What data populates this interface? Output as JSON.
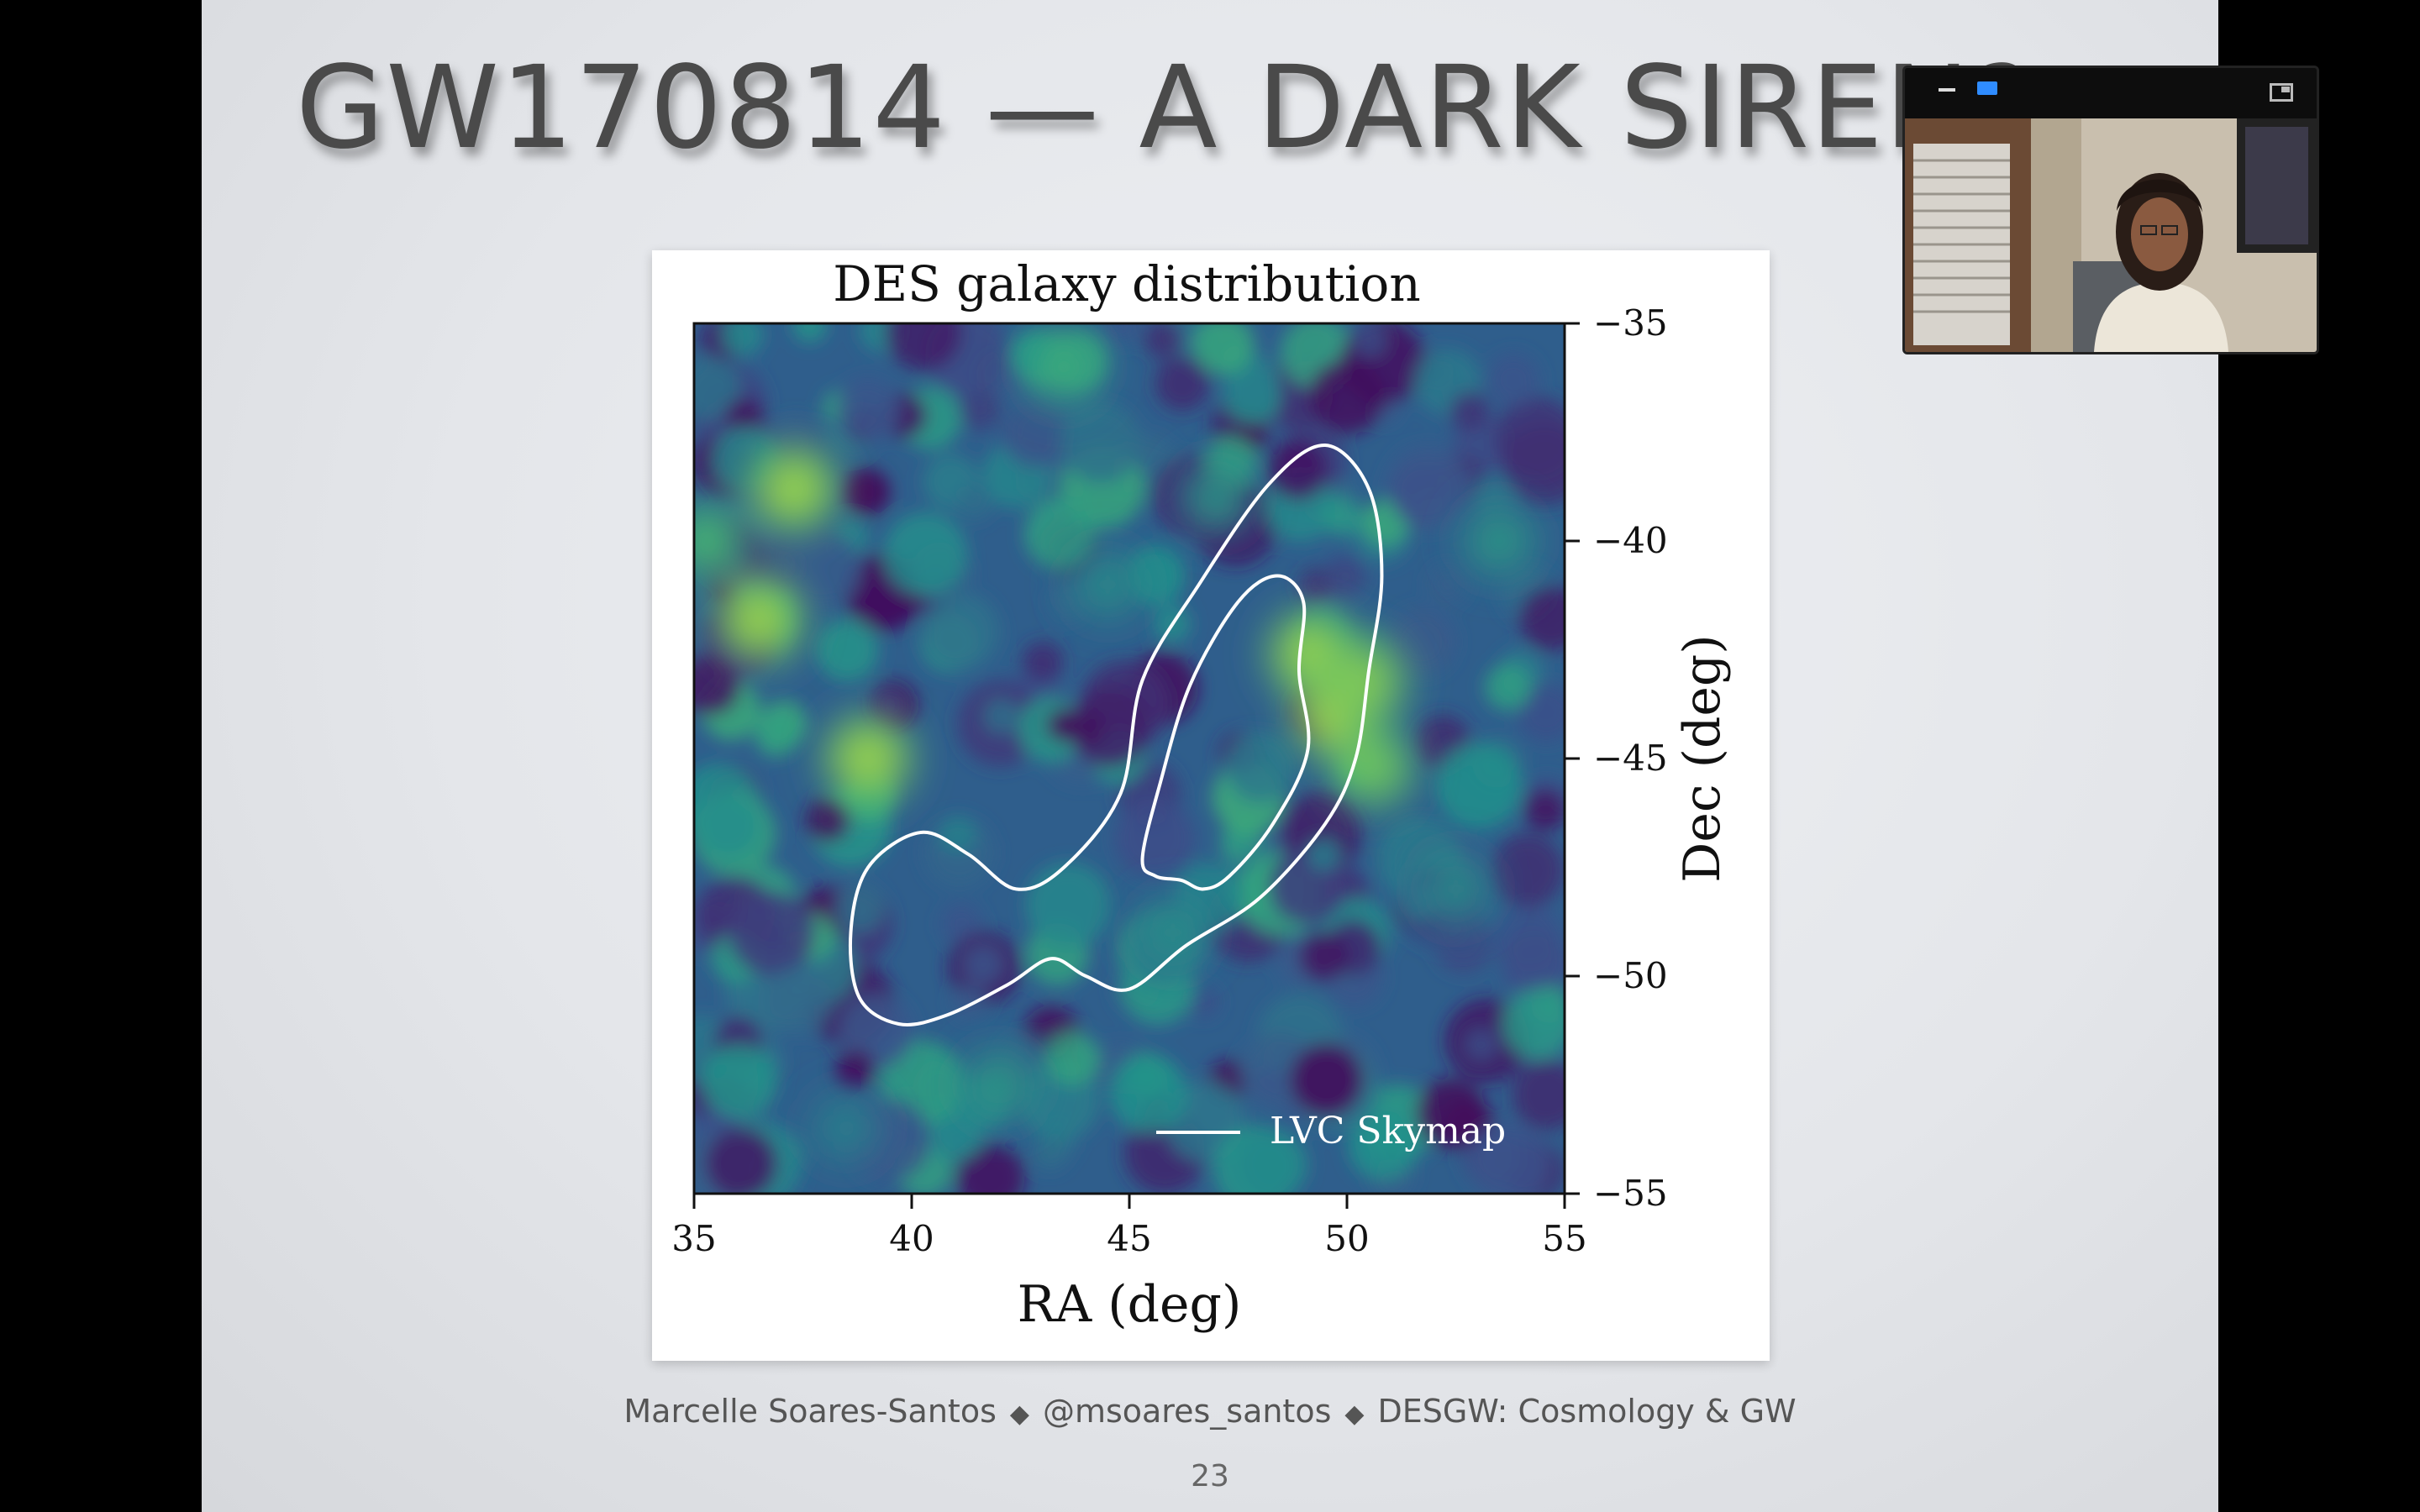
{
  "slide": {
    "title": "GW170814 — A DARK SIREN?",
    "footer": {
      "author": "Marcelle Soares-Santos",
      "separator": "◆",
      "handle": "@msoares_santos",
      "talk": "DESGW: Cosmology & GW"
    },
    "page_number": "23"
  },
  "chart_data": {
    "type": "heatmap",
    "title": "DES galaxy distribution",
    "xlabel": "RA (deg)",
    "ylabel": "Dec (deg)",
    "xlim": [
      35,
      55
    ],
    "ylim": [
      -55,
      -35
    ],
    "x_ticks": [
      "35",
      "40",
      "45",
      "50",
      "55"
    ],
    "y_ticks": [
      "−35",
      "−40",
      "−45",
      "−50",
      "−55"
    ],
    "colormap": "viridis",
    "legend": {
      "label": "LVC Skymap",
      "placement": "bottom-right",
      "color": "#ffffff"
    },
    "hotspots": [
      {
        "ra": 37.3,
        "dec": -38.8,
        "value": 0.95
      },
      {
        "ra": 36.5,
        "dec": -41.8,
        "value": 0.95
      },
      {
        "ra": 39.0,
        "dec": -45.0,
        "value": 0.95
      },
      {
        "ra": 35.3,
        "dec": -40.0,
        "value": 0.75
      },
      {
        "ra": 49.2,
        "dec": -42.6,
        "value": 0.95
      },
      {
        "ra": 49.8,
        "dec": -44.0,
        "value": 1.0
      },
      {
        "ra": 50.4,
        "dec": -43.2,
        "value": 0.9
      },
      {
        "ra": 50.6,
        "dec": -45.2,
        "value": 0.85
      },
      {
        "ra": 47.0,
        "dec": -39.0,
        "value": 0.6
      },
      {
        "ra": 43.5,
        "dec": -36.0,
        "value": 0.7
      },
      {
        "ra": 46.0,
        "dec": -49.0,
        "value": 0.55
      },
      {
        "ra": 52.5,
        "dec": -48.0,
        "value": 0.55
      },
      {
        "ra": 42.0,
        "dec": -52.5,
        "value": 0.6
      },
      {
        "ra": 53.5,
        "dec": -40.0,
        "value": 0.6
      },
      {
        "ra": 44.5,
        "dec": -41.0,
        "value": 0.55
      },
      {
        "ra": 38.5,
        "dec": -53.5,
        "value": 0.5
      }
    ],
    "contours": [
      {
        "name": "outer",
        "points": [
          [
            49.5,
            -37.8
          ],
          [
            50.5,
            -38.8
          ],
          [
            50.8,
            -40.8
          ],
          [
            50.5,
            -43.0
          ],
          [
            50.2,
            -45.0
          ],
          [
            49.5,
            -46.5
          ],
          [
            48.0,
            -48.2
          ],
          [
            46.3,
            -49.3
          ],
          [
            45.0,
            -50.3
          ],
          [
            44.0,
            -50.0
          ],
          [
            43.2,
            -49.6
          ],
          [
            42.2,
            -50.2
          ],
          [
            40.8,
            -50.9
          ],
          [
            39.7,
            -51.1
          ],
          [
            38.8,
            -50.5
          ],
          [
            38.6,
            -49.0
          ],
          [
            39.0,
            -47.5
          ],
          [
            40.2,
            -46.7
          ],
          [
            41.3,
            -47.2
          ],
          [
            42.4,
            -48.0
          ],
          [
            43.5,
            -47.5
          ],
          [
            44.8,
            -45.8
          ],
          [
            45.3,
            -43.2
          ],
          [
            46.6,
            -41.0
          ],
          [
            48.2,
            -38.7
          ]
        ]
      },
      {
        "name": "inner",
        "points": [
          [
            48.4,
            -40.8
          ],
          [
            49.0,
            -41.4
          ],
          [
            48.9,
            -43.0
          ],
          [
            49.1,
            -44.8
          ],
          [
            48.3,
            -46.5
          ],
          [
            47.3,
            -47.7
          ],
          [
            46.7,
            -48.0
          ],
          [
            46.2,
            -47.8
          ],
          [
            45.6,
            -47.7
          ],
          [
            45.3,
            -47.3
          ],
          [
            45.7,
            -45.6
          ],
          [
            46.4,
            -43.3
          ],
          [
            47.5,
            -41.4
          ]
        ]
      }
    ]
  },
  "video_overlay": {
    "toolbar_icons": [
      "minimize-icon",
      "video-icon",
      "expand-icon"
    ],
    "accent": "#2f8cff"
  }
}
